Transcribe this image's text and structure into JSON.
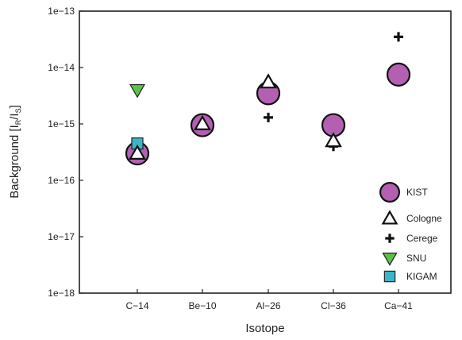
{
  "chart_data": {
    "type": "scatter",
    "title": "",
    "xlabel": "Isotope",
    "ylabel": "Background [I",
    "ylabel_sub_r": "R",
    "ylabel_mid": "/I",
    "ylabel_sub_s": "S",
    "ylabel_end": "]",
    "yscale": "log",
    "ylim": [
      1e-18,
      1e-13
    ],
    "y_ticks": [
      {
        "value": 1e-13,
        "label": "1e−13"
      },
      {
        "value": 1e-14,
        "label": "1e−14"
      },
      {
        "value": 1e-15,
        "label": "1e−15"
      },
      {
        "value": 1e-16,
        "label": "1e−16"
      },
      {
        "value": 1e-17,
        "label": "1e−17"
      },
      {
        "value": 1e-18,
        "label": "1e−18"
      }
    ],
    "categories": [
      "C-14",
      "Be-10",
      "Al-26",
      "Cl-36",
      "Ca-41"
    ],
    "category_labels": [
      "C−14",
      "Be−10",
      "Al−26",
      "Cl−36",
      "Ca−41"
    ],
    "legend_position": "bottom-right",
    "grid": false,
    "series": [
      {
        "name": "KIST",
        "marker": "circle",
        "color": "#b360b3",
        "points": [
          {
            "x": "C-14",
            "y": 3e-16
          },
          {
            "x": "Be-10",
            "y": 9.5e-16
          },
          {
            "x": "Al-26",
            "y": 3.5e-15
          },
          {
            "x": "Cl-36",
            "y": 9.5e-16
          },
          {
            "x": "Ca-41",
            "y": 7.5e-15
          }
        ]
      },
      {
        "name": "Cologne",
        "marker": "triangle-up",
        "color": "#ffffff",
        "points": [
          {
            "x": "C-14",
            "y": 3e-16
          },
          {
            "x": "Be-10",
            "y": 1e-15
          },
          {
            "x": "Al-26",
            "y": 5.5e-15
          },
          {
            "x": "Cl-36",
            "y": 5e-16
          }
        ]
      },
      {
        "name": "Cerege",
        "marker": "plus",
        "color": "#111111",
        "points": [
          {
            "x": "Al-26",
            "y": 1.3e-15
          },
          {
            "x": "Cl-36",
            "y": 4e-16
          },
          {
            "x": "Ca-41",
            "y": 3.5e-14
          }
        ]
      },
      {
        "name": "SNU",
        "marker": "triangle-down",
        "color": "#5cc246",
        "points": [
          {
            "x": "C-14",
            "y": 4e-15
          }
        ]
      },
      {
        "name": "KIGAM",
        "marker": "square",
        "color": "#3bb6c9",
        "points": [
          {
            "x": "C-14",
            "y": 4.5e-16
          }
        ]
      }
    ]
  }
}
